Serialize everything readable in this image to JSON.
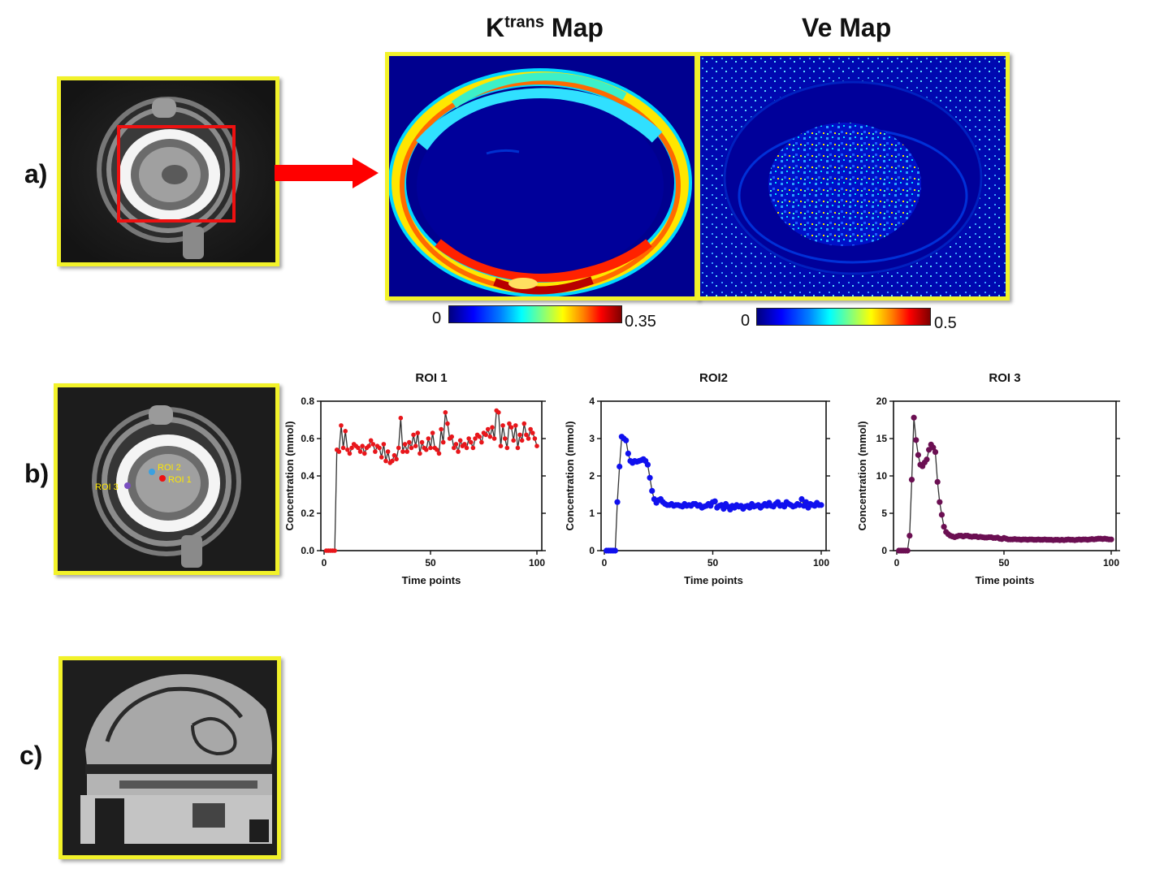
{
  "figure": {
    "panel_labels": {
      "a": "a)",
      "b": "b)",
      "c": "c)"
    },
    "ktrans_map": {
      "title_base": "K",
      "title_sup": "trans",
      "title_rest": " Map",
      "colorbar_min": "0",
      "colorbar_max": "0.35"
    },
    "ve_map": {
      "title": "Ve Map",
      "colorbar_min": "0",
      "colorbar_max": "0.5"
    },
    "roi_labels": {
      "roi1": "ROI 1",
      "roi2": "ROI 2",
      "roi3": "ROI 3"
    },
    "colors": {
      "frame": "#f2f22a",
      "arrow": "#ff0000",
      "roi1": "#e8161b",
      "roi2": "#1010ee",
      "roi3": "#6b0f52",
      "roi2_marker": "#3aa0e0",
      "roi3_marker": "#7a4fc0"
    }
  },
  "chart_data": [
    {
      "type": "line",
      "title": "ROI 1",
      "xlabel": "Time points",
      "ylabel": "Concentration (mmol)",
      "xlim": [
        0,
        100
      ],
      "ylim": [
        0,
        0.8
      ],
      "xticks": [
        "0",
        "50",
        "100"
      ],
      "yticks": [
        "0.0",
        "0.2",
        "0.4",
        "0.6",
        "0.8"
      ],
      "series": [
        {
          "x": [
            1,
            2,
            3,
            4,
            5,
            6,
            7,
            8,
            9,
            10,
            11,
            12,
            13,
            14,
            15,
            16,
            17,
            18,
            19,
            20,
            21,
            22,
            23,
            24,
            25,
            26,
            27,
            28,
            29,
            30,
            31,
            32,
            33,
            34,
            35,
            36,
            37,
            38,
            39,
            40,
            41,
            42,
            43,
            44,
            45,
            46,
            47,
            48,
            49,
            50,
            51,
            52,
            53,
            54,
            55,
            56,
            57,
            58,
            59,
            60,
            61,
            62,
            63,
            64,
            65,
            66,
            67,
            68,
            69,
            70,
            71,
            72,
            73,
            74,
            75,
            76,
            77,
            78,
            79,
            80,
            81,
            82,
            83,
            84,
            85,
            86,
            87,
            88,
            89,
            90,
            91,
            92,
            93,
            94,
            95,
            96,
            97,
            98,
            99,
            100
          ],
          "values": [
            0,
            0,
            0,
            0,
            0,
            0.54,
            0.53,
            0.67,
            0.55,
            0.64,
            0.54,
            0.52,
            0.55,
            0.57,
            0.56,
            0.55,
            0.53,
            0.56,
            0.52,
            0.55,
            0.56,
            0.59,
            0.57,
            0.53,
            0.56,
            0.55,
            0.5,
            0.57,
            0.48,
            0.53,
            0.47,
            0.48,
            0.51,
            0.49,
            0.55,
            0.71,
            0.53,
            0.57,
            0.53,
            0.58,
            0.55,
            0.62,
            0.56,
            0.63,
            0.52,
            0.58,
            0.55,
            0.54,
            0.6,
            0.55,
            0.63,
            0.55,
            0.54,
            0.52,
            0.65,
            0.58,
            0.74,
            0.68,
            0.6,
            0.61,
            0.55,
            0.57,
            0.53,
            0.59,
            0.56,
            0.57,
            0.55,
            0.6,
            0.58,
            0.55,
            0.6,
            0.62,
            0.61,
            0.58,
            0.63,
            0.62,
            0.65,
            0.61,
            0.66,
            0.6,
            0.75,
            0.74,
            0.56,
            0.67,
            0.6,
            0.55,
            0.68,
            0.66,
            0.59,
            0.67,
            0.55,
            0.62,
            0.59,
            0.68,
            0.62,
            0.6,
            0.65,
            0.63,
            0.6,
            0.56
          ]
        }
      ]
    },
    {
      "type": "line",
      "title": "ROI2",
      "xlabel": "Time points",
      "ylabel": "Concentration (mmol)",
      "xlim": [
        0,
        100
      ],
      "ylim": [
        0,
        4
      ],
      "xticks": [
        "0",
        "50",
        "100"
      ],
      "yticks": [
        "0",
        "1",
        "2",
        "3",
        "4"
      ],
      "series": [
        {
          "x": [
            1,
            2,
            3,
            4,
            5,
            6,
            7,
            8,
            9,
            10,
            11,
            12,
            13,
            14,
            15,
            16,
            17,
            18,
            19,
            20,
            21,
            22,
            23,
            24,
            25,
            26,
            27,
            28,
            29,
            30,
            31,
            32,
            33,
            34,
            35,
            36,
            37,
            38,
            39,
            40,
            41,
            42,
            43,
            44,
            45,
            46,
            47,
            48,
            49,
            50,
            51,
            52,
            53,
            54,
            55,
            56,
            57,
            58,
            59,
            60,
            61,
            62,
            63,
            64,
            65,
            66,
            67,
            68,
            69,
            70,
            71,
            72,
            73,
            74,
            75,
            76,
            77,
            78,
            79,
            80,
            81,
            82,
            83,
            84,
            85,
            86,
            87,
            88,
            89,
            90,
            91,
            92,
            93,
            94,
            95,
            96,
            97,
            98,
            99,
            100
          ],
          "values": [
            0,
            0,
            0,
            0,
            0,
            1.3,
            2.25,
            3.05,
            3.0,
            2.95,
            2.6,
            2.4,
            2.35,
            2.4,
            2.38,
            2.4,
            2.42,
            2.45,
            2.4,
            2.3,
            1.95,
            1.6,
            1.38,
            1.28,
            1.35,
            1.38,
            1.3,
            1.25,
            1.22,
            1.22,
            1.25,
            1.2,
            1.22,
            1.22,
            1.2,
            1.18,
            1.25,
            1.2,
            1.22,
            1.2,
            1.25,
            1.25,
            1.2,
            1.22,
            1.15,
            1.18,
            1.2,
            1.25,
            1.2,
            1.3,
            1.32,
            1.15,
            1.2,
            1.22,
            1.12,
            1.25,
            1.18,
            1.1,
            1.2,
            1.15,
            1.22,
            1.18,
            1.2,
            1.12,
            1.18,
            1.2,
            1.15,
            1.25,
            1.18,
            1.2,
            1.22,
            1.15,
            1.2,
            1.25,
            1.2,
            1.28,
            1.2,
            1.18,
            1.25,
            1.3,
            1.2,
            1.22,
            1.18,
            1.3,
            1.25,
            1.22,
            1.18,
            1.2,
            1.25,
            1.22,
            1.38,
            1.2,
            1.3,
            1.15,
            1.25,
            1.22,
            1.2,
            1.28,
            1.22,
            1.22
          ]
        }
      ]
    },
    {
      "type": "line",
      "title": "ROI 3",
      "xlabel": "Time points",
      "ylabel": "Concentration (mmol)",
      "xlim": [
        0,
        100
      ],
      "ylim": [
        0,
        20
      ],
      "xticks": [
        "0",
        "50",
        "100"
      ],
      "yticks": [
        "0",
        "5",
        "10",
        "15",
        "20"
      ],
      "series": [
        {
          "x": [
            1,
            2,
            3,
            4,
            5,
            6,
            7,
            8,
            9,
            10,
            11,
            12,
            13,
            14,
            15,
            16,
            17,
            18,
            19,
            20,
            21,
            22,
            23,
            24,
            25,
            26,
            27,
            28,
            29,
            30,
            31,
            32,
            33,
            34,
            35,
            36,
            37,
            38,
            39,
            40,
            41,
            42,
            43,
            44,
            45,
            46,
            47,
            48,
            49,
            50,
            51,
            52,
            53,
            54,
            55,
            56,
            57,
            58,
            59,
            60,
            61,
            62,
            63,
            64,
            65,
            66,
            67,
            68,
            69,
            70,
            71,
            72,
            73,
            74,
            75,
            76,
            77,
            78,
            79,
            80,
            81,
            82,
            83,
            84,
            85,
            86,
            87,
            88,
            89,
            90,
            91,
            92,
            93,
            94,
            95,
            96,
            97,
            98,
            99,
            100
          ],
          "values": [
            0,
            0,
            0,
            0,
            0,
            2,
            9.5,
            17.8,
            14.8,
            12.8,
            11.5,
            11.3,
            11.8,
            12.2,
            13.5,
            14.2,
            13.8,
            13.2,
            9.2,
            6.5,
            4.8,
            3.2,
            2.5,
            2.2,
            2.0,
            1.9,
            1.8,
            1.9,
            2.0,
            2.0,
            1.9,
            2.0,
            2.0,
            1.9,
            1.85,
            1.9,
            1.9,
            1.8,
            1.85,
            1.8,
            1.75,
            1.75,
            1.8,
            1.8,
            1.7,
            1.7,
            1.75,
            1.6,
            1.55,
            1.7,
            1.6,
            1.5,
            1.5,
            1.5,
            1.55,
            1.5,
            1.5,
            1.45,
            1.5,
            1.5,
            1.45,
            1.5,
            1.5,
            1.45,
            1.45,
            1.5,
            1.45,
            1.45,
            1.5,
            1.45,
            1.45,
            1.45,
            1.4,
            1.45,
            1.45,
            1.4,
            1.45,
            1.4,
            1.45,
            1.5,
            1.45,
            1.45,
            1.4,
            1.45,
            1.5,
            1.45,
            1.5,
            1.5,
            1.45,
            1.5,
            1.55,
            1.5,
            1.55,
            1.6,
            1.6,
            1.55,
            1.6,
            1.55,
            1.5,
            1.5
          ]
        }
      ]
    }
  ]
}
